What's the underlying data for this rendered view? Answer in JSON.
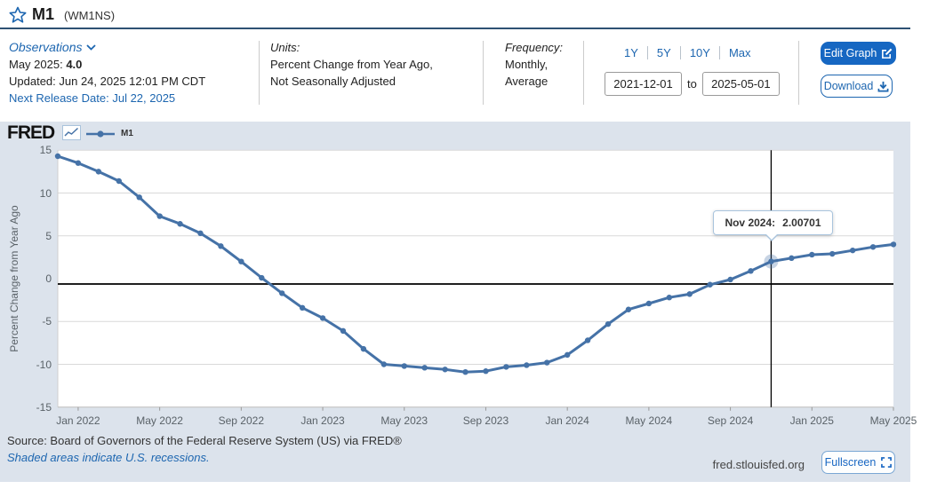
{
  "header": {
    "title": "M1",
    "series_id": "(WM1NS)"
  },
  "meta": {
    "observations": {
      "label": "Observations",
      "latest_label": "May 2025:",
      "latest_value": "4.0",
      "updated": "Updated: Jun 24, 2025 12:01 PM CDT",
      "next_release": "Next Release Date: Jul 22, 2025"
    },
    "units": {
      "label": "Units:",
      "line1": "Percent Change from Year Ago,",
      "line2": "Not Seasonally Adjusted"
    },
    "frequency": {
      "label": "Frequency:",
      "line1": "Monthly,",
      "line2": "Average"
    },
    "range": {
      "presets": [
        "1Y",
        "5Y",
        "10Y",
        "Max"
      ],
      "start_date": "2021-12-01",
      "to_label": "to",
      "end_date": "2025-05-01"
    },
    "actions": {
      "edit_graph": "Edit Graph",
      "download": "Download"
    }
  },
  "chart_area": {
    "brand": "FRED",
    "legend_name": "M1"
  },
  "chart_data": {
    "type": "line",
    "title": "M1",
    "ylabel": "Percent Change from Year Ago",
    "ylim": [
      -15,
      15
    ],
    "y_ticks": [
      15,
      10,
      5,
      0,
      -5,
      -10,
      -15
    ],
    "grid": true,
    "zero_line": true,
    "legend_position": "top-left",
    "x": [
      "2021-12",
      "2022-01",
      "2022-02",
      "2022-03",
      "2022-04",
      "2022-05",
      "2022-06",
      "2022-07",
      "2022-08",
      "2022-09",
      "2022-10",
      "2022-11",
      "2022-12",
      "2023-01",
      "2023-02",
      "2023-03",
      "2023-04",
      "2023-05",
      "2023-06",
      "2023-07",
      "2023-08",
      "2023-09",
      "2023-10",
      "2023-11",
      "2023-12",
      "2024-01",
      "2024-02",
      "2024-03",
      "2024-04",
      "2024-05",
      "2024-06",
      "2024-07",
      "2024-08",
      "2024-09",
      "2024-10",
      "2024-11",
      "2024-12",
      "2025-01",
      "2025-02",
      "2025-03",
      "2025-04",
      "2025-05"
    ],
    "x_tick_indices": [
      1,
      5,
      9,
      13,
      17,
      21,
      25,
      29,
      33,
      37,
      41
    ],
    "x_tick_labels": [
      "Jan 2022",
      "May 2022",
      "Sep 2022",
      "Jan 2023",
      "May 2023",
      "Sep 2023",
      "Jan 2024",
      "May 2024",
      "Sep 2024",
      "Jan 2025",
      "May 2025"
    ],
    "series": [
      {
        "name": "M1",
        "color": "#4572a7",
        "values": [
          14.3,
          13.5,
          12.5,
          11.4,
          9.5,
          7.3,
          6.4,
          5.3,
          3.8,
          2.0,
          0.1,
          -1.7,
          -3.4,
          -4.6,
          -6.1,
          -8.2,
          -10.0,
          -10.2,
          -10.4,
          -10.6,
          -10.9,
          -10.8,
          -10.3,
          -10.1,
          -9.8,
          -8.9,
          -7.2,
          -5.3,
          -3.6,
          -2.9,
          -2.2,
          -1.8,
          -0.7,
          -0.1,
          0.9,
          2.00701,
          2.4,
          2.8,
          2.9,
          3.3,
          3.7,
          4.0
        ]
      }
    ],
    "highlight": {
      "index": 35,
      "x": "2024-11",
      "value": 2.00701,
      "tooltip_label": "Nov 2024:",
      "tooltip_value": "2.00701"
    }
  },
  "footer": {
    "source": "Source: Board of Governors of the Federal Reserve System (US) via FRED®",
    "recessions_note": "Shaded areas indicate U.S. recessions.",
    "site": "fred.stlouisfed.org",
    "fullscreen_label": "Fullscreen"
  },
  "colors": {
    "link_blue": "#1d66b0",
    "button_blue": "#1667c2",
    "series_blue": "#4572a7",
    "panel_bg": "#dce3ec",
    "header_rule": "#2e5173",
    "grid": "#d9d9d9"
  }
}
